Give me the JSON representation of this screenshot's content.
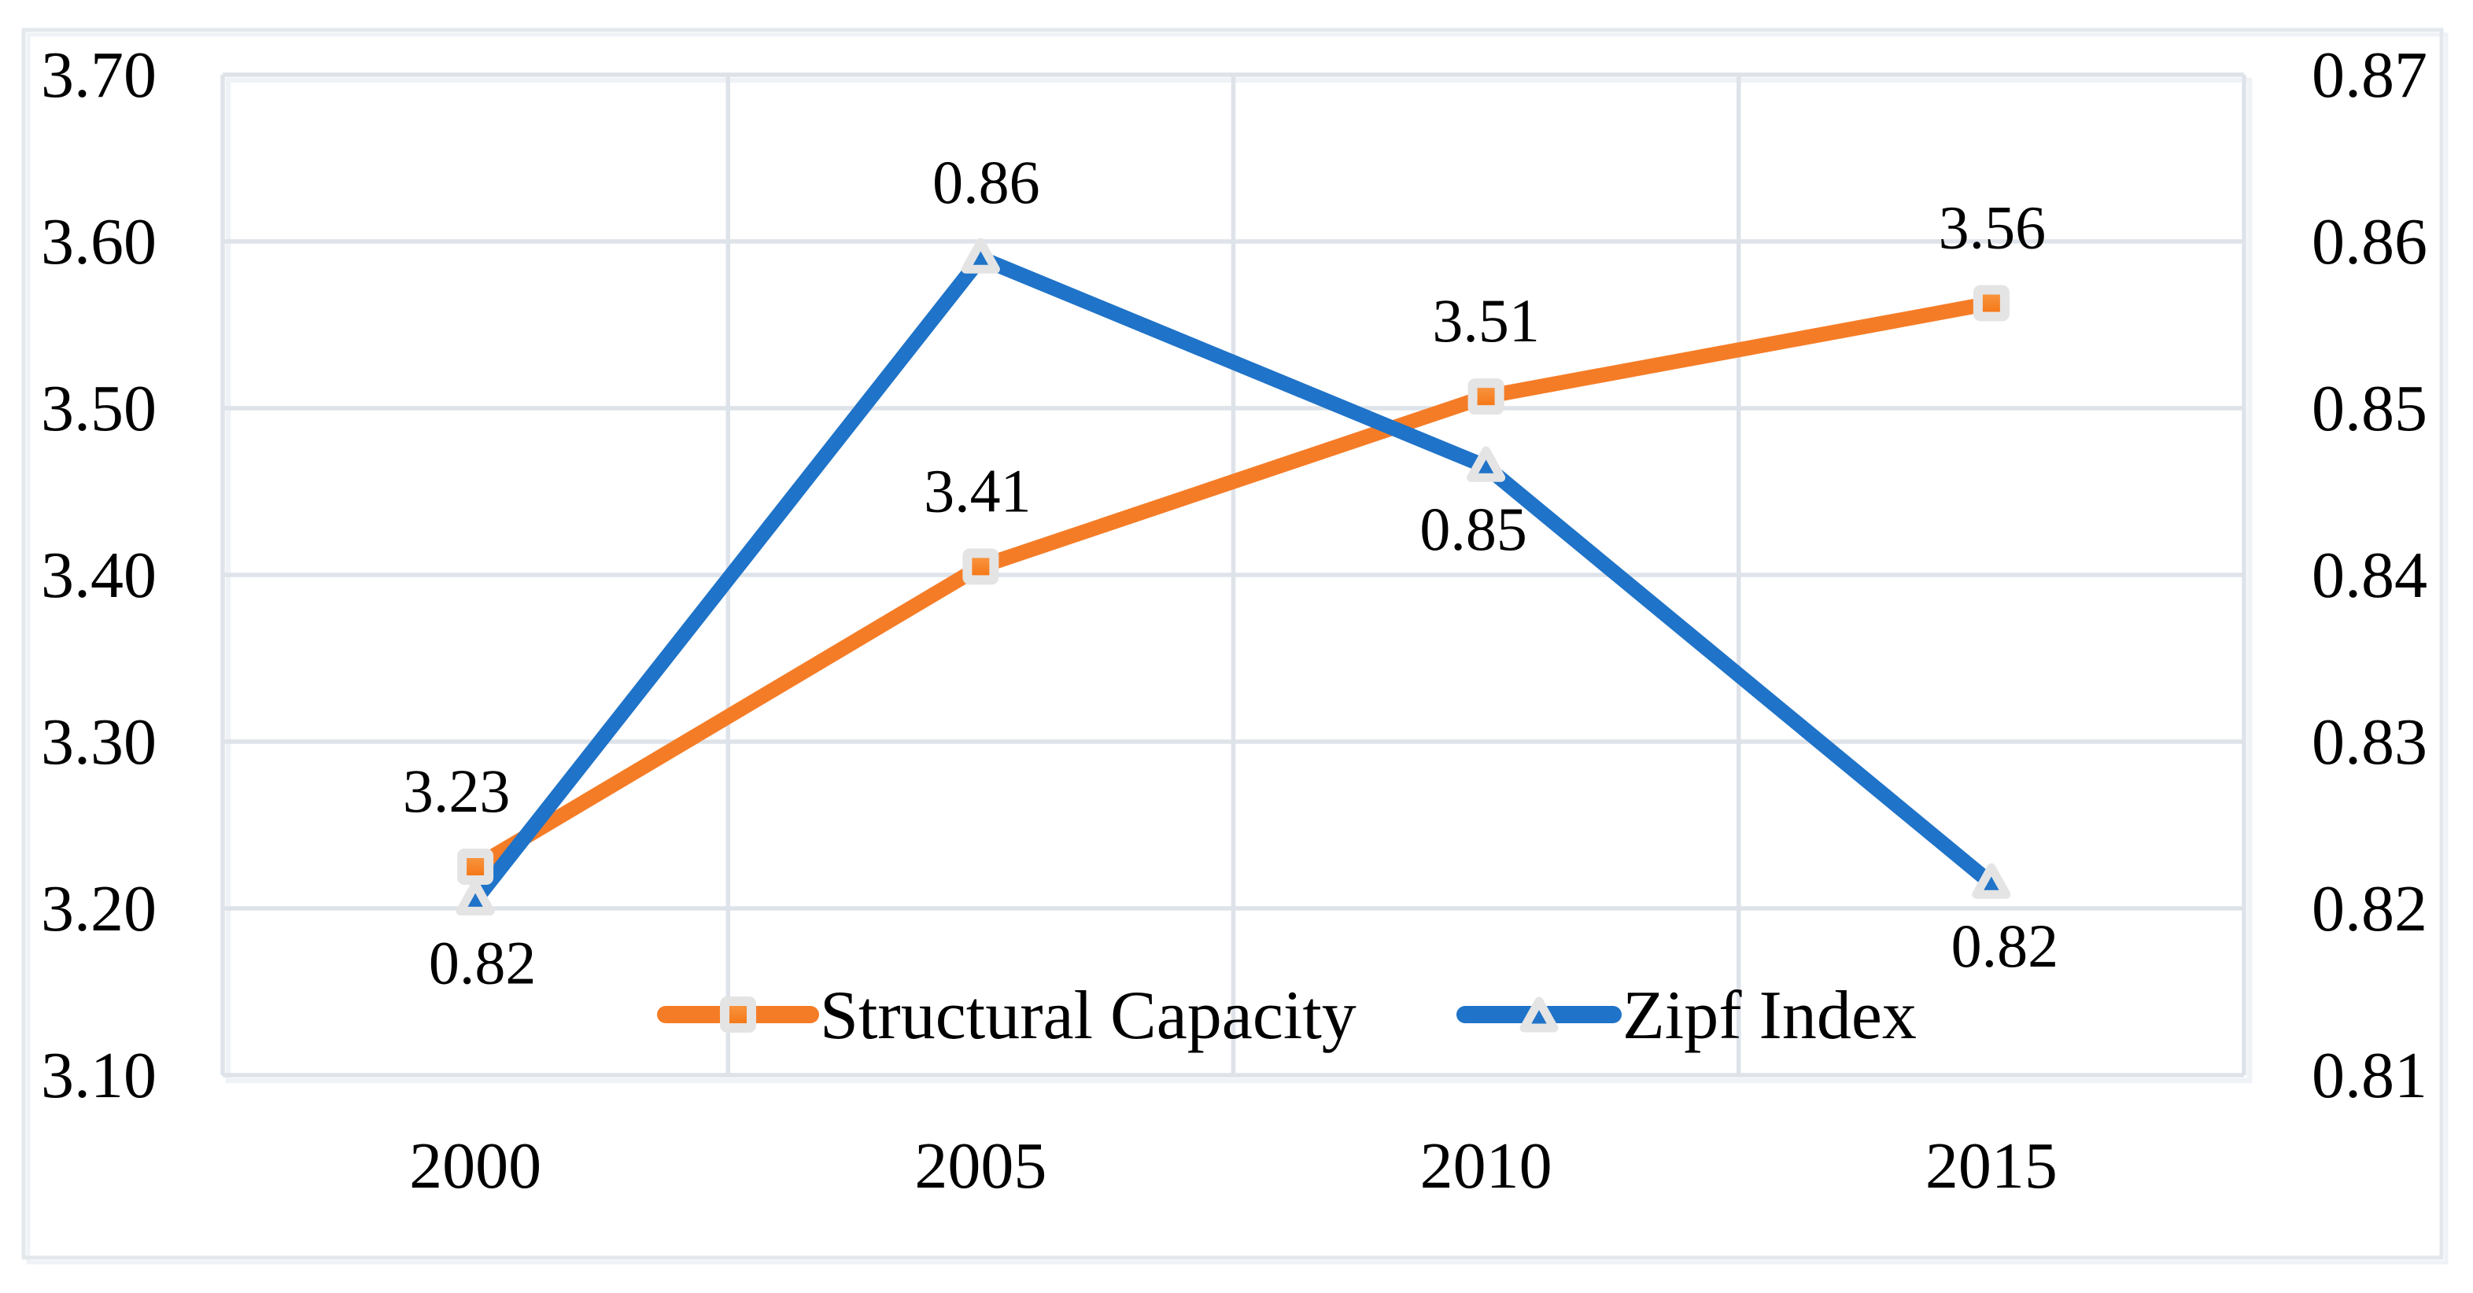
{
  "chart_data": {
    "type": "line",
    "categories": [
      "2000",
      "2005",
      "2010",
      "2015"
    ],
    "series": [
      {
        "name": "Structural Capacity",
        "axis": "left",
        "color": "#F57C26",
        "marker": "square",
        "values": [
          3.23,
          3.41,
          3.51,
          3.56
        ],
        "data_labels": [
          "3.23",
          "3.41",
          "3.51",
          "3.56"
        ],
        "label_side": [
          "above",
          "above",
          "above",
          "above"
        ],
        "plot_values": [
          3.225,
          3.405,
          3.507,
          3.563
        ]
      },
      {
        "name": "Zipf Index",
        "axis": "right",
        "color": "#1F73C8",
        "marker": "triangle",
        "values": [
          0.82,
          0.86,
          0.85,
          0.82
        ],
        "data_labels": [
          "0.82",
          "0.86",
          "0.85",
          "0.82"
        ],
        "label_side": [
          "below",
          "above",
          "below",
          "below"
        ],
        "plot_values": [
          0.8205,
          0.859,
          0.8465,
          0.8215
        ]
      }
    ],
    "left_axis": {
      "min": 3.1,
      "max": 3.7,
      "step": 0.1,
      "tick_labels": [
        "3.70",
        "3.60",
        "3.50",
        "3.40",
        "3.30",
        "3.20",
        "3.10"
      ]
    },
    "right_axis": {
      "min": 0.81,
      "max": 0.87,
      "step": 0.01,
      "tick_labels": [
        "0.87",
        "0.86",
        "0.85",
        "0.84",
        "0.83",
        "0.82",
        "0.81"
      ]
    },
    "x_axis": {
      "tick_labels": [
        "2000",
        "2005",
        "2010",
        "2015"
      ]
    },
    "legend": {
      "position": "bottom-center-inside",
      "entries": [
        "Structural Capacity",
        "Zipf Index"
      ]
    },
    "grid": {
      "horizontal": true,
      "vertical": true
    },
    "colors": {
      "series_orange": "#F57C26",
      "series_orange_marker_light": "#F99A48",
      "series_orange_marker_dark": "#F4720E",
      "series_blue": "#1F73C8",
      "gridline": "#DEE3EA",
      "figure_border": "#E3E8ED",
      "plot_shadow": "#EFF2F6",
      "marker_outline": "#E4E4E4",
      "text": "#000000",
      "background": "#FFFFFF"
    }
  }
}
